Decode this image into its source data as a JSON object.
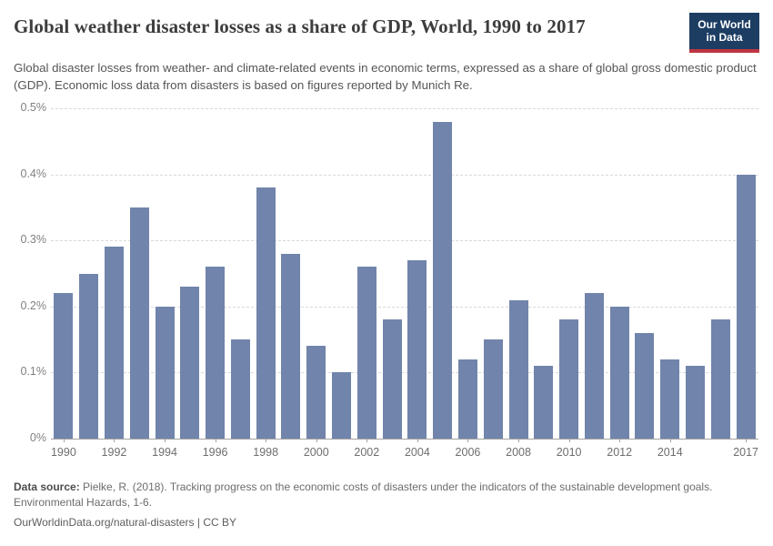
{
  "header": {
    "title": "Global weather disaster losses as a share of GDP, World, 1990 to 2017",
    "subtitle": "Global disaster losses from weather- and climate-related events in economic terms, expressed as a share of global gross domestic product (GDP). Economic loss data from disasters is based on figures reported by Munich Re.",
    "logo": {
      "line1": "Our World",
      "line2": "in Data",
      "bg_color": "#1d3d63",
      "accent_color": "#bf3541"
    }
  },
  "chart_data": {
    "type": "bar",
    "title": "Global weather disaster losses as a share of GDP, World, 1990 to 2017",
    "categories": [
      "1990",
      "1991",
      "1992",
      "1993",
      "1994",
      "1995",
      "1996",
      "1997",
      "1998",
      "1999",
      "2000",
      "2001",
      "2002",
      "2003",
      "2004",
      "2005",
      "2006",
      "2007",
      "2008",
      "2009",
      "2010",
      "2011",
      "2012",
      "2013",
      "2014",
      "2015",
      "2016",
      "2017"
    ],
    "values": [
      0.22,
      0.25,
      0.29,
      0.35,
      0.2,
      0.23,
      0.26,
      0.15,
      0.38,
      0.28,
      0.14,
      0.1,
      0.26,
      0.18,
      0.27,
      0.48,
      0.12,
      0.15,
      0.21,
      0.11,
      0.18,
      0.22,
      0.2,
      0.16,
      0.12,
      0.11,
      0.18,
      0.4
    ],
    "unit": "% of GDP",
    "xlabel": "",
    "ylabel": "",
    "ylim": [
      0,
      0.5
    ],
    "yticks": [
      0,
      0.1,
      0.2,
      0.3,
      0.4,
      0.5
    ],
    "ytick_labels": [
      "0%",
      "0.1%",
      "0.2%",
      "0.3%",
      "0.4%",
      "0.5%"
    ],
    "xtick_labels": [
      "1990",
      "1992",
      "1994",
      "1996",
      "1998",
      "2000",
      "2002",
      "2004",
      "2006",
      "2008",
      "2010",
      "2012",
      "2014",
      "2017"
    ],
    "bar_color": "#7184ab",
    "grid": true,
    "legend": false
  },
  "footer": {
    "source_label": "Data source:",
    "source_text": " Pielke, R. (2018). Tracking progress on the economic costs of disasters under the indicators of the sustainable development goals. Environmental Hazards, 1-6.",
    "link_text": "OurWorldinData.org/natural-disasters",
    "separator": " | ",
    "license_text": "CC BY"
  }
}
